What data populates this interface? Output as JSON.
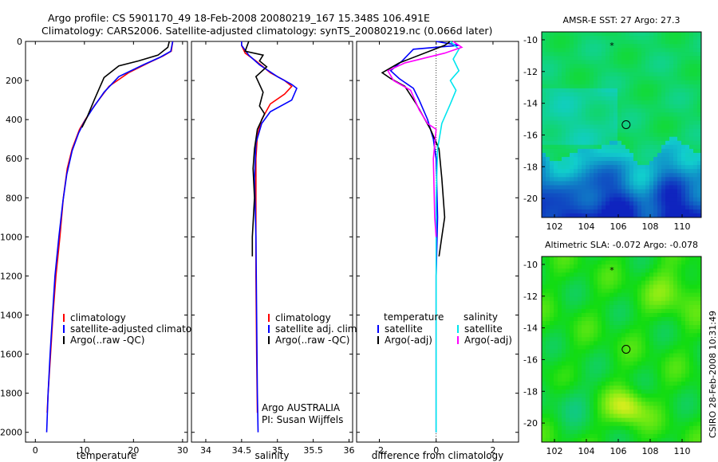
{
  "title": {
    "line1": "Argo profile: CS 5901170_49 18-Feb-2008 20080219_167 15.348S 106.491E",
    "line2": "Climatology: CARS2006. Satellite-adjusted climatology: synTS_20080219.nc (0.066d later)"
  },
  "side_text": "CSIRO 28-Feb-2008 10:31:49",
  "colors": {
    "climatology": "#ff0000",
    "satellite": "#0000ff",
    "argo": "#000000",
    "sal_satellite": "#00e5ee",
    "sal_argo": "#ff00ff"
  },
  "chart_data": [
    {
      "type": "line",
      "panel": "temperature",
      "xlabel": "temperature",
      "ylabel": "",
      "xlim": [
        -2,
        31
      ],
      "ylim": [
        2050,
        0
      ],
      "xticks": [
        "0",
        "10",
        "20",
        "30"
      ],
      "yticks": [
        "0",
        "200",
        "400",
        "600",
        "800",
        "1000",
        "1200",
        "1400",
        "1600",
        "1800",
        "2000"
      ],
      "legend": [
        "climatology",
        "satellite-adjusted climatology",
        "Argo(..raw -QC)"
      ],
      "series": [
        {
          "name": "climatology",
          "color": "#ff0000",
          "points": [
            [
              28,
              0
            ],
            [
              27.7,
              50
            ],
            [
              26,
              75
            ],
            [
              23,
              110
            ],
            [
              19,
              160
            ],
            [
              15,
              230
            ],
            [
              12,
              330
            ],
            [
              10.2,
              400
            ],
            [
              9,
              450
            ],
            [
              7.5,
              550
            ],
            [
              6.5,
              650
            ],
            [
              5.7,
              800
            ],
            [
              5,
              1000
            ],
            [
              4.2,
              1200
            ],
            [
              3.6,
              1400
            ],
            [
              3.1,
              1600
            ],
            [
              2.6,
              1800
            ],
            [
              2.4,
              1900
            ]
          ]
        },
        {
          "name": "satellite-adjusted climatology",
          "color": "#0000ff",
          "points": [
            [
              28,
              0
            ],
            [
              27.6,
              50
            ],
            [
              25.5,
              80
            ],
            [
              22,
              120
            ],
            [
              17,
              180
            ],
            [
              14,
              260
            ],
            [
              11.5,
              350
            ],
            [
              10,
              410
            ],
            [
              8.8,
              470
            ],
            [
              7.5,
              560
            ],
            [
              6.4,
              680
            ],
            [
              5.6,
              820
            ],
            [
              4.8,
              1000
            ],
            [
              4,
              1200
            ],
            [
              3.5,
              1400
            ],
            [
              3,
              1600
            ],
            [
              2.6,
              1800
            ],
            [
              2.3,
              2000
            ]
          ]
        },
        {
          "name": "Argo(..raw -QC)",
          "color": "#000000",
          "points": [
            [
              27.3,
              0
            ],
            [
              27,
              30
            ],
            [
              25,
              70
            ],
            [
              21,
              100
            ],
            [
              17,
              125
            ],
            [
              14,
              185
            ],
            [
              12,
              300
            ],
            [
              10.5,
              390
            ],
            [
              9.5,
              440
            ]
          ]
        }
      ]
    },
    {
      "type": "line",
      "panel": "salinity",
      "xlabel": "salinity",
      "xlim": [
        33.8,
        36.05
      ],
      "ylim": [
        2050,
        0
      ],
      "xticks": [
        "34",
        "34.5",
        "35",
        "35.5",
        "36"
      ],
      "legend": [
        "climatology",
        "satellite adj. clim.",
        "Argo(..raw -QC)"
      ],
      "annotation": [
        "Argo AUSTRALIA",
        "PI: Susan Wijffels"
      ],
      "series": [
        {
          "name": "climatology",
          "color": "#ff0000",
          "points": [
            [
              34.5,
              0
            ],
            [
              34.5,
              20
            ],
            [
              34.55,
              60
            ],
            [
              34.7,
              100
            ],
            [
              34.9,
              160
            ],
            [
              35.1,
              200
            ],
            [
              35.2,
              230
            ],
            [
              35.1,
              270
            ],
            [
              34.9,
              320
            ],
            [
              34.78,
              400
            ],
            [
              34.72,
              480
            ],
            [
              34.7,
              600
            ],
            [
              34.7,
              800
            ],
            [
              34.7,
              1200
            ],
            [
              34.71,
              1600
            ],
            [
              34.72,
              1900
            ]
          ]
        },
        {
          "name": "satellite adj. clim.",
          "color": "#0000ff",
          "points": [
            [
              34.5,
              0
            ],
            [
              34.5,
              20
            ],
            [
              34.6,
              70
            ],
            [
              34.75,
              120
            ],
            [
              35.0,
              180
            ],
            [
              35.2,
              220
            ],
            [
              35.27,
              240
            ],
            [
              35.2,
              300
            ],
            [
              34.9,
              360
            ],
            [
              34.78,
              420
            ],
            [
              34.7,
              520
            ],
            [
              34.68,
              700
            ],
            [
              34.7,
              1000
            ],
            [
              34.71,
              1400
            ],
            [
              34.72,
              1800
            ],
            [
              34.73,
              2000
            ]
          ]
        },
        {
          "name": "Argo(..raw -QC)",
          "color": "#000000",
          "points": [
            [
              34.6,
              0
            ],
            [
              34.55,
              50
            ],
            [
              34.8,
              70
            ],
            [
              34.75,
              100
            ],
            [
              34.85,
              130
            ],
            [
              34.7,
              180
            ],
            [
              34.8,
              260
            ],
            [
              34.75,
              330
            ],
            [
              34.82,
              370
            ],
            [
              34.72,
              450
            ],
            [
              34.68,
              550
            ],
            [
              34.66,
              650
            ],
            [
              34.68,
              800
            ],
            [
              34.65,
              1000
            ],
            [
              34.65,
              1100
            ]
          ]
        }
      ]
    },
    {
      "type": "line",
      "panel": "difference",
      "xlabel": "difference from climatology",
      "xlim": [
        -2.8,
        2.9
      ],
      "ylim": [
        2050,
        0
      ],
      "xticks": [
        "-2",
        "0",
        "2"
      ],
      "legend_temperature": [
        "temperature",
        "satellite",
        "Argo(-adj)"
      ],
      "legend_salinity": [
        "salinity",
        "satellite",
        "Argo(-adj)"
      ],
      "series": [
        {
          "name": "temperature satellite",
          "color": "#0000ff",
          "points": [
            [
              0,
              0
            ],
            [
              0.8,
              20
            ],
            [
              -0.8,
              40
            ],
            [
              -1.2,
              100
            ],
            [
              -1.6,
              150
            ],
            [
              -1.3,
              190
            ],
            [
              -0.8,
              240
            ],
            [
              -0.6,
              300
            ],
            [
              -0.3,
              400
            ],
            [
              -0.1,
              500
            ],
            [
              0,
              600
            ],
            [
              0.05,
              900
            ],
            [
              0,
              1200
            ],
            [
              0,
              1600
            ],
            [
              0,
              2000
            ]
          ]
        },
        {
          "name": "temperature Argo(-adj)",
          "color": "#000000",
          "points": [
            [
              0.5,
              0
            ],
            [
              0.3,
              20
            ],
            [
              -1.3,
              110
            ],
            [
              -1.9,
              160
            ],
            [
              -1.6,
              190
            ],
            [
              -1.1,
              230
            ],
            [
              -0.7,
              320
            ],
            [
              -0.2,
              450
            ],
            [
              0.1,
              550
            ],
            [
              0.2,
              700
            ],
            [
              0.3,
              900
            ],
            [
              0.2,
              1000
            ],
            [
              0.1,
              1100
            ]
          ]
        },
        {
          "name": "salinity satellite",
          "color": "#00e5ee",
          "points": [
            [
              0.5,
              0
            ],
            [
              0.8,
              40
            ],
            [
              0.6,
              90
            ],
            [
              0.8,
              150
            ],
            [
              0.5,
              200
            ],
            [
              0.7,
              250
            ],
            [
              0.5,
              320
            ],
            [
              0.2,
              420
            ],
            [
              0.05,
              550
            ],
            [
              0,
              800
            ],
            [
              0,
              1200
            ],
            [
              0,
              1600
            ],
            [
              0,
              2000
            ]
          ]
        },
        {
          "name": "salinity Argo(-adj)",
          "color": "#ff00ff",
          "points": [
            [
              0.6,
              0
            ],
            [
              0.9,
              30
            ],
            [
              0.3,
              60
            ],
            [
              -1.1,
              110
            ],
            [
              -1.7,
              150
            ],
            [
              -1.5,
              200
            ],
            [
              -0.9,
              250
            ],
            [
              -0.6,
              350
            ],
            [
              -0.3,
              420
            ],
            [
              0,
              450
            ],
            [
              -0.1,
              600
            ],
            [
              -0.05,
              900
            ],
            [
              0,
              1000
            ]
          ]
        }
      ]
    },
    {
      "type": "heatmap",
      "panel": "sst-map",
      "title": "AMSR-E SST: 27 Argo: 27.3",
      "xlim": [
        101.2,
        111.2
      ],
      "ylim": [
        -21.2,
        -9.5
      ],
      "xticks": [
        "102",
        "104",
        "106",
        "108",
        "110"
      ],
      "yticks": [
        "-10",
        "-12",
        "-14",
        "-16",
        "-18",
        "-20"
      ],
      "marker": {
        "lon": 106.49,
        "lat": -15.35
      }
    },
    {
      "type": "heatmap",
      "panel": "sla-map",
      "title": "Altimetric SLA: -0.072 Argo: -0.078",
      "xlim": [
        101.2,
        111.2
      ],
      "ylim": [
        -21.2,
        -9.5
      ],
      "xticks": [
        "102",
        "104",
        "106",
        "108",
        "110"
      ],
      "yticks": [
        "-10",
        "-12",
        "-14",
        "-16",
        "-18",
        "-20"
      ],
      "marker": {
        "lon": 106.49,
        "lat": -15.35
      }
    }
  ]
}
